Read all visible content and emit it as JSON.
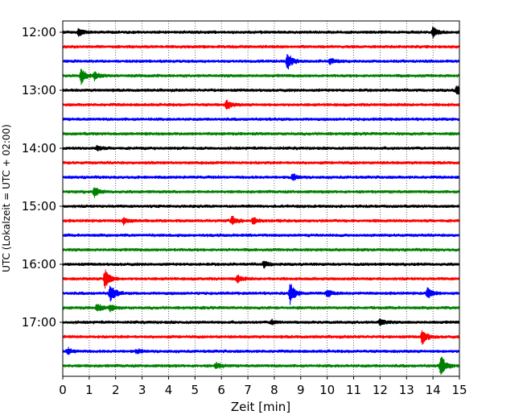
{
  "chart_data": {
    "type": "line",
    "title": "",
    "xlabel": "Zeit  [min]",
    "ylabel": "UTC (Lokalzeit = UTC + 02:00)",
    "xlim": [
      0,
      15
    ],
    "x_ticks": [
      0,
      1,
      2,
      3,
      4,
      5,
      6,
      7,
      8,
      9,
      10,
      11,
      12,
      13,
      14,
      15
    ],
    "x_tick_labels": [
      "0",
      "1",
      "2",
      "3",
      "4",
      "5",
      "6",
      "7",
      "8",
      "9",
      "10",
      "11",
      "12",
      "13",
      "14",
      "15"
    ],
    "y_tick_labels": [
      "12:00",
      "13:00",
      "14:00",
      "15:00",
      "16:00",
      "17:00"
    ],
    "vertical_grid": true,
    "grid_style": "dotted",
    "colors": [
      "#000000",
      "#ff0000",
      "#0000ff",
      "#008000"
    ],
    "series": [
      {
        "start": "12:00",
        "color": "#000000",
        "events": [
          {
            "x": 0.6,
            "amp": 0.35
          },
          {
            "x": 14.0,
            "amp": 0.5
          }
        ]
      },
      {
        "start": "12:15",
        "color": "#ff0000",
        "events": []
      },
      {
        "start": "12:30",
        "color": "#0000ff",
        "events": [
          {
            "x": 8.5,
            "amp": 0.9
          },
          {
            "x": 10.1,
            "amp": 0.3
          }
        ]
      },
      {
        "start": "12:45",
        "color": "#008000",
        "events": [
          {
            "x": 0.7,
            "amp": 0.75
          },
          {
            "x": 1.2,
            "amp": 0.4
          }
        ]
      },
      {
        "start": "13:00",
        "color": "#000000",
        "events": [
          {
            "x": 14.9,
            "amp": 0.45
          }
        ]
      },
      {
        "start": "13:15",
        "color": "#ff0000",
        "events": [
          {
            "x": 6.2,
            "amp": 0.45
          }
        ]
      },
      {
        "start": "13:30",
        "color": "#0000ff",
        "events": []
      },
      {
        "start": "13:45",
        "color": "#008000",
        "events": []
      },
      {
        "start": "14:00",
        "color": "#000000",
        "events": [
          {
            "x": 1.3,
            "amp": 0.25
          }
        ]
      },
      {
        "start": "14:15",
        "color": "#ff0000",
        "events": []
      },
      {
        "start": "14:30",
        "color": "#0000ff",
        "events": [
          {
            "x": 8.7,
            "amp": 0.3
          }
        ]
      },
      {
        "start": "14:45",
        "color": "#008000",
        "events": [
          {
            "x": 1.2,
            "amp": 0.45
          }
        ]
      },
      {
        "start": "15:00",
        "color": "#000000",
        "events": []
      },
      {
        "start": "15:15",
        "color": "#ff0000",
        "events": [
          {
            "x": 2.3,
            "amp": 0.35
          },
          {
            "x": 6.4,
            "amp": 0.45
          },
          {
            "x": 7.2,
            "amp": 0.3
          }
        ]
      },
      {
        "start": "15:30",
        "color": "#0000ff",
        "events": []
      },
      {
        "start": "15:45",
        "color": "#008000",
        "events": []
      },
      {
        "start": "16:00",
        "color": "#000000",
        "events": [
          {
            "x": 7.6,
            "amp": 0.3
          }
        ]
      },
      {
        "start": "16:15",
        "color": "#ff0000",
        "events": [
          {
            "x": 1.6,
            "amp": 1.0
          },
          {
            "x": 6.6,
            "amp": 0.35
          }
        ]
      },
      {
        "start": "16:30",
        "color": "#0000ff",
        "events": [
          {
            "x": 1.8,
            "amp": 0.9
          },
          {
            "x": 8.6,
            "amp": 1.0
          },
          {
            "x": 10.0,
            "amp": 0.35
          },
          {
            "x": 13.8,
            "amp": 0.6
          }
        ]
      },
      {
        "start": "16:45",
        "color": "#008000",
        "events": [
          {
            "x": 1.3,
            "amp": 0.4
          },
          {
            "x": 1.8,
            "amp": 0.3
          }
        ]
      },
      {
        "start": "17:00",
        "color": "#000000",
        "events": [
          {
            "x": 7.9,
            "amp": 0.25
          },
          {
            "x": 12.0,
            "amp": 0.35
          }
        ]
      },
      {
        "start": "17:15",
        "color": "#ff0000",
        "events": [
          {
            "x": 13.6,
            "amp": 0.75
          }
        ]
      },
      {
        "start": "17:30",
        "color": "#0000ff",
        "events": [
          {
            "x": 0.2,
            "amp": 0.3
          },
          {
            "x": 2.8,
            "amp": 0.2
          }
        ]
      },
      {
        "start": "17:45",
        "color": "#008000",
        "events": [
          {
            "x": 5.8,
            "amp": 0.3
          },
          {
            "x": 14.3,
            "amp": 1.0
          }
        ]
      }
    ]
  }
}
